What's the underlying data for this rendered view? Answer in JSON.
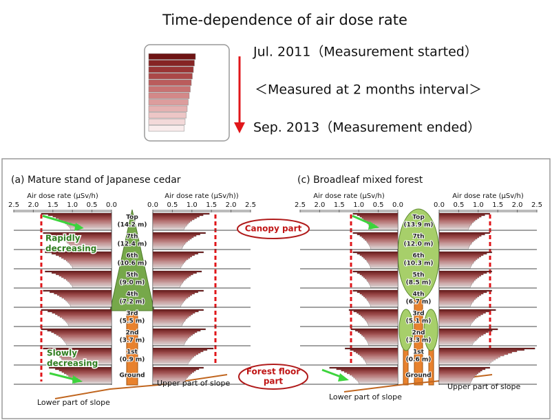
{
  "title": "Time-dependence of air dose rate",
  "legend": {
    "start": "Jul. 2011（Measurement started）",
    "interval": "＜Measured at 2 months interval＞",
    "end": "Sep. 2013（Measurement ended）"
  },
  "colors": [
    "#6e1414",
    "#862424",
    "#9a3535",
    "#ab4848",
    "#ba5c5c",
    "#c87272",
    "#d38888",
    "#dc9d9d",
    "#e5b2b2",
    "#edc6c6",
    "#f3d9d9",
    "#f9ecec"
  ],
  "panels": [
    {
      "title": "(a) Mature stand of Japanese cedar",
      "heights": [
        {
          "level": "Top",
          "height": "(14.2 m)"
        },
        {
          "level": "7th",
          "height": "(12.4 m)"
        },
        {
          "level": "6th",
          "height": "(10.6 m)"
        },
        {
          "level": "5th",
          "height": "(9.0 m)"
        },
        {
          "level": "4th",
          "height": "(7.2 m)"
        },
        {
          "level": "3rd",
          "height": "(5.5 m)"
        },
        {
          "level": "2nd",
          "height": "(3.7 m)"
        },
        {
          "level": "1st",
          "height": "(0.9 m)"
        },
        {
          "level": "Ground"
        }
      ],
      "lower_slope": "Lower part of slope",
      "upper_slope": "Upper part of slope"
    },
    {
      "title": "(c) Broadleaf mixed forest",
      "heights": [
        {
          "level": "Top",
          "height": "(13.9 m)"
        },
        {
          "level": "7th",
          "height": "(12.0 m)"
        },
        {
          "level": "6th",
          "height": "(10.3 m)"
        },
        {
          "level": "5th",
          "height": "(8.5 m)"
        },
        {
          "level": "4th",
          "height": "(6.7 m)"
        },
        {
          "level": "3rd",
          "height": "(5.1 m)"
        },
        {
          "level": "2nd",
          "height": "(3.3 m)"
        },
        {
          "level": "1st",
          "height": "(0.6 m)"
        },
        {
          "level": "Ground"
        }
      ],
      "lower_slope": "Lower part of slope",
      "upper_slope": "Upper part of slope"
    }
  ],
  "annotations": {
    "canopy": "Canopy part",
    "floor": [
      "Forest floor",
      "part"
    ],
    "rapid": [
      "Rapidly",
      "decreasing"
    ],
    "slow": [
      "Slowly",
      "decreasing"
    ]
  },
  "chart_data": [
    {
      "type": "bar",
      "orientation": "horizontal",
      "inverted": true,
      "xlabel": "Air dose rate (μSv/h)",
      "xlim": [
        0,
        2.5
      ],
      "xticks": [
        {
          "value": 0,
          "label": "0.0"
        },
        0.5,
        {
          "value": 1,
          "label": "1.0"
        },
        1.5,
        {
          "value": 2,
          "label": "2.0"
        },
        2.5
      ],
      "values": [
        [
          1.8,
          1.62,
          1.5,
          1.42,
          1.35,
          1.28,
          1.22,
          1.18,
          1.14,
          1.1,
          1.07,
          1.05
        ],
        [
          1.75,
          1.57,
          1.45,
          1.37,
          1.3,
          1.23,
          1.17,
          1.13,
          1.09,
          1.05,
          1.02,
          1.0
        ],
        [
          1.7,
          1.53,
          1.42,
          1.34,
          1.28,
          1.22,
          1.16,
          1.12,
          1.08,
          1.05,
          1.02,
          1.0
        ],
        [
          1.7,
          1.53,
          1.42,
          1.34,
          1.28,
          1.22,
          1.16,
          1.12,
          1.08,
          1.05,
          1.02,
          1.0
        ],
        [
          1.75,
          1.58,
          1.47,
          1.39,
          1.33,
          1.27,
          1.21,
          1.17,
          1.13,
          1.1,
          1.07,
          1.05
        ],
        [
          1.8,
          1.63,
          1.52,
          1.44,
          1.38,
          1.32,
          1.26,
          1.22,
          1.18,
          1.15,
          1.12,
          1.1
        ],
        [
          1.8,
          1.64,
          1.54,
          1.47,
          1.41,
          1.35,
          1.3,
          1.26,
          1.23,
          1.2,
          1.17,
          1.15
        ],
        [
          1.75,
          1.62,
          1.53,
          1.47,
          1.42,
          1.37,
          1.33,
          1.29,
          1.27,
          1.24,
          1.22,
          1.2
        ],
        [
          1.6,
          1.44,
          1.34,
          1.27,
          1.21,
          1.15,
          1.1,
          1.06,
          1.03,
          1.0,
          0.97,
          0.95
        ]
      ]
    },
    {
      "type": "bar",
      "orientation": "horizontal",
      "inverted": false,
      "xlabel": "Air dose rate (μSv/h))",
      "xlim": [
        0,
        2.5
      ],
      "xticks": [
        {
          "value": 0,
          "label": "0.0"
        },
        0.5,
        {
          "value": 1,
          "label": "1.0"
        },
        1.5,
        {
          "value": 2,
          "label": "2.0"
        },
        2.5
      ],
      "values": [
        [
          1.45,
          1.29,
          1.19,
          1.12,
          1.06,
          1.0,
          0.95,
          0.91,
          0.88,
          0.85,
          0.82,
          0.8
        ],
        [
          1.35,
          1.21,
          1.11,
          1.04,
          0.99,
          0.94,
          0.89,
          0.85,
          0.82,
          0.79,
          0.77,
          0.75
        ],
        [
          1.3,
          1.16,
          1.07,
          1.0,
          0.95,
          0.9,
          0.85,
          0.82,
          0.79,
          0.76,
          0.74,
          0.72
        ],
        [
          1.25,
          1.12,
          1.03,
          0.97,
          0.92,
          0.87,
          0.83,
          0.79,
          0.77,
          0.74,
          0.72,
          0.7
        ],
        [
          1.3,
          1.16,
          1.07,
          1.0,
          0.95,
          0.9,
          0.85,
          0.82,
          0.79,
          0.76,
          0.74,
          0.72
        ],
        [
          1.3,
          1.17,
          1.08,
          1.02,
          0.97,
          0.92,
          0.88,
          0.84,
          0.82,
          0.79,
          0.77,
          0.75
        ],
        [
          1.35,
          1.22,
          1.13,
          1.07,
          1.02,
          0.97,
          0.93,
          0.89,
          0.87,
          0.84,
          0.82,
          0.8
        ],
        [
          1.55,
          1.39,
          1.29,
          1.22,
          1.16,
          1.1,
          1.05,
          1.01,
          0.98,
          0.95,
          0.92,
          0.9
        ],
        [
          1.3,
          1.18,
          1.1,
          1.05,
          1.0,
          0.96,
          0.92,
          0.89,
          0.86,
          0.84,
          0.82,
          0.8
        ]
      ]
    },
    {
      "type": "bar",
      "orientation": "horizontal",
      "inverted": true,
      "xlabel": "Air dose rate (μSv/h)",
      "xlim": [
        0,
        2.5
      ],
      "xticks": [
        {
          "value": 0,
          "label": "0.0"
        },
        0.5,
        {
          "value": 1,
          "label": "1.0"
        },
        1.5,
        {
          "value": 2,
          "label": "2.0"
        },
        2.5
      ],
      "values": [
        [
          1.15,
          1.04,
          0.97,
          0.92,
          0.88,
          0.84,
          0.8,
          0.78,
          0.75,
          0.73,
          0.71,
          0.7
        ],
        [
          1.15,
          1.04,
          0.97,
          0.92,
          0.88,
          0.84,
          0.8,
          0.78,
          0.75,
          0.73,
          0.71,
          0.7
        ],
        [
          1.15,
          1.04,
          0.97,
          0.92,
          0.88,
          0.84,
          0.8,
          0.78,
          0.75,
          0.73,
          0.71,
          0.7
        ],
        [
          1.15,
          1.04,
          0.97,
          0.92,
          0.88,
          0.84,
          0.8,
          0.78,
          0.75,
          0.73,
          0.71,
          0.7
        ],
        [
          1.15,
          1.04,
          0.97,
          0.92,
          0.88,
          0.84,
          0.8,
          0.78,
          0.75,
          0.73,
          0.71,
          0.7
        ],
        [
          1.25,
          1.13,
          1.05,
          1.0,
          0.95,
          0.91,
          0.87,
          0.84,
          0.81,
          0.79,
          0.77,
          0.75
        ],
        [
          1.2,
          1.09,
          1.02,
          0.97,
          0.93,
          0.89,
          0.85,
          0.83,
          0.8,
          0.78,
          0.76,
          0.75
        ],
        [
          1.35,
          1.22,
          1.13,
          1.07,
          1.02,
          0.97,
          0.93,
          0.89,
          0.87,
          0.84,
          0.82,
          0.8
        ],
        [
          1.75,
          1.57,
          1.45,
          1.37,
          1.3,
          1.23,
          1.17,
          1.13,
          1.09,
          1.05,
          1.02,
          1.0
        ]
      ]
    },
    {
      "type": "bar",
      "orientation": "horizontal",
      "inverted": false,
      "xlabel": "Air dose rate (μSv/h)",
      "xlim": [
        0,
        2.5
      ],
      "xticks": [
        {
          "value": 0,
          "label": "0.0"
        },
        0.5,
        {
          "value": 1,
          "label": "1.0"
        },
        1.5,
        {
          "value": 2,
          "label": "2.0"
        },
        2.5
      ],
      "values": [
        [
          1.3,
          1.17,
          1.08,
          1.02,
          0.97,
          0.92,
          0.88,
          0.84,
          0.82,
          0.79,
          0.77,
          0.75
        ],
        [
          1.3,
          1.17,
          1.08,
          1.02,
          0.97,
          0.92,
          0.88,
          0.84,
          0.82,
          0.79,
          0.77,
          0.75
        ],
        [
          1.35,
          1.22,
          1.13,
          1.07,
          1.02,
          0.97,
          0.93,
          0.89,
          0.87,
          0.84,
          0.82,
          0.8
        ],
        [
          1.35,
          1.22,
          1.13,
          1.07,
          1.02,
          0.97,
          0.93,
          0.89,
          0.87,
          0.84,
          0.82,
          0.8
        ],
        [
          1.35,
          1.22,
          1.13,
          1.07,
          1.02,
          0.97,
          0.93,
          0.89,
          0.87,
          0.84,
          0.82,
          0.8
        ],
        [
          1.45,
          1.29,
          1.19,
          1.12,
          1.06,
          1.0,
          0.95,
          0.91,
          0.88,
          0.85,
          0.82,
          0.8
        ],
        [
          1.5,
          1.36,
          1.26,
          1.19,
          1.13,
          1.07,
          1.02,
          0.98,
          0.95,
          0.9,
          0.87,
          0.85
        ],
        [
          2.45,
          2.18,
          1.99,
          1.86,
          1.76,
          1.66,
          1.56,
          1.5,
          1.44,
          1.38,
          1.33,
          1.3
        ],
        [
          1.3,
          1.18,
          1.1,
          1.05,
          1.0,
          0.96,
          0.92,
          0.89,
          0.86,
          0.84,
          0.82,
          0.8
        ]
      ]
    }
  ]
}
